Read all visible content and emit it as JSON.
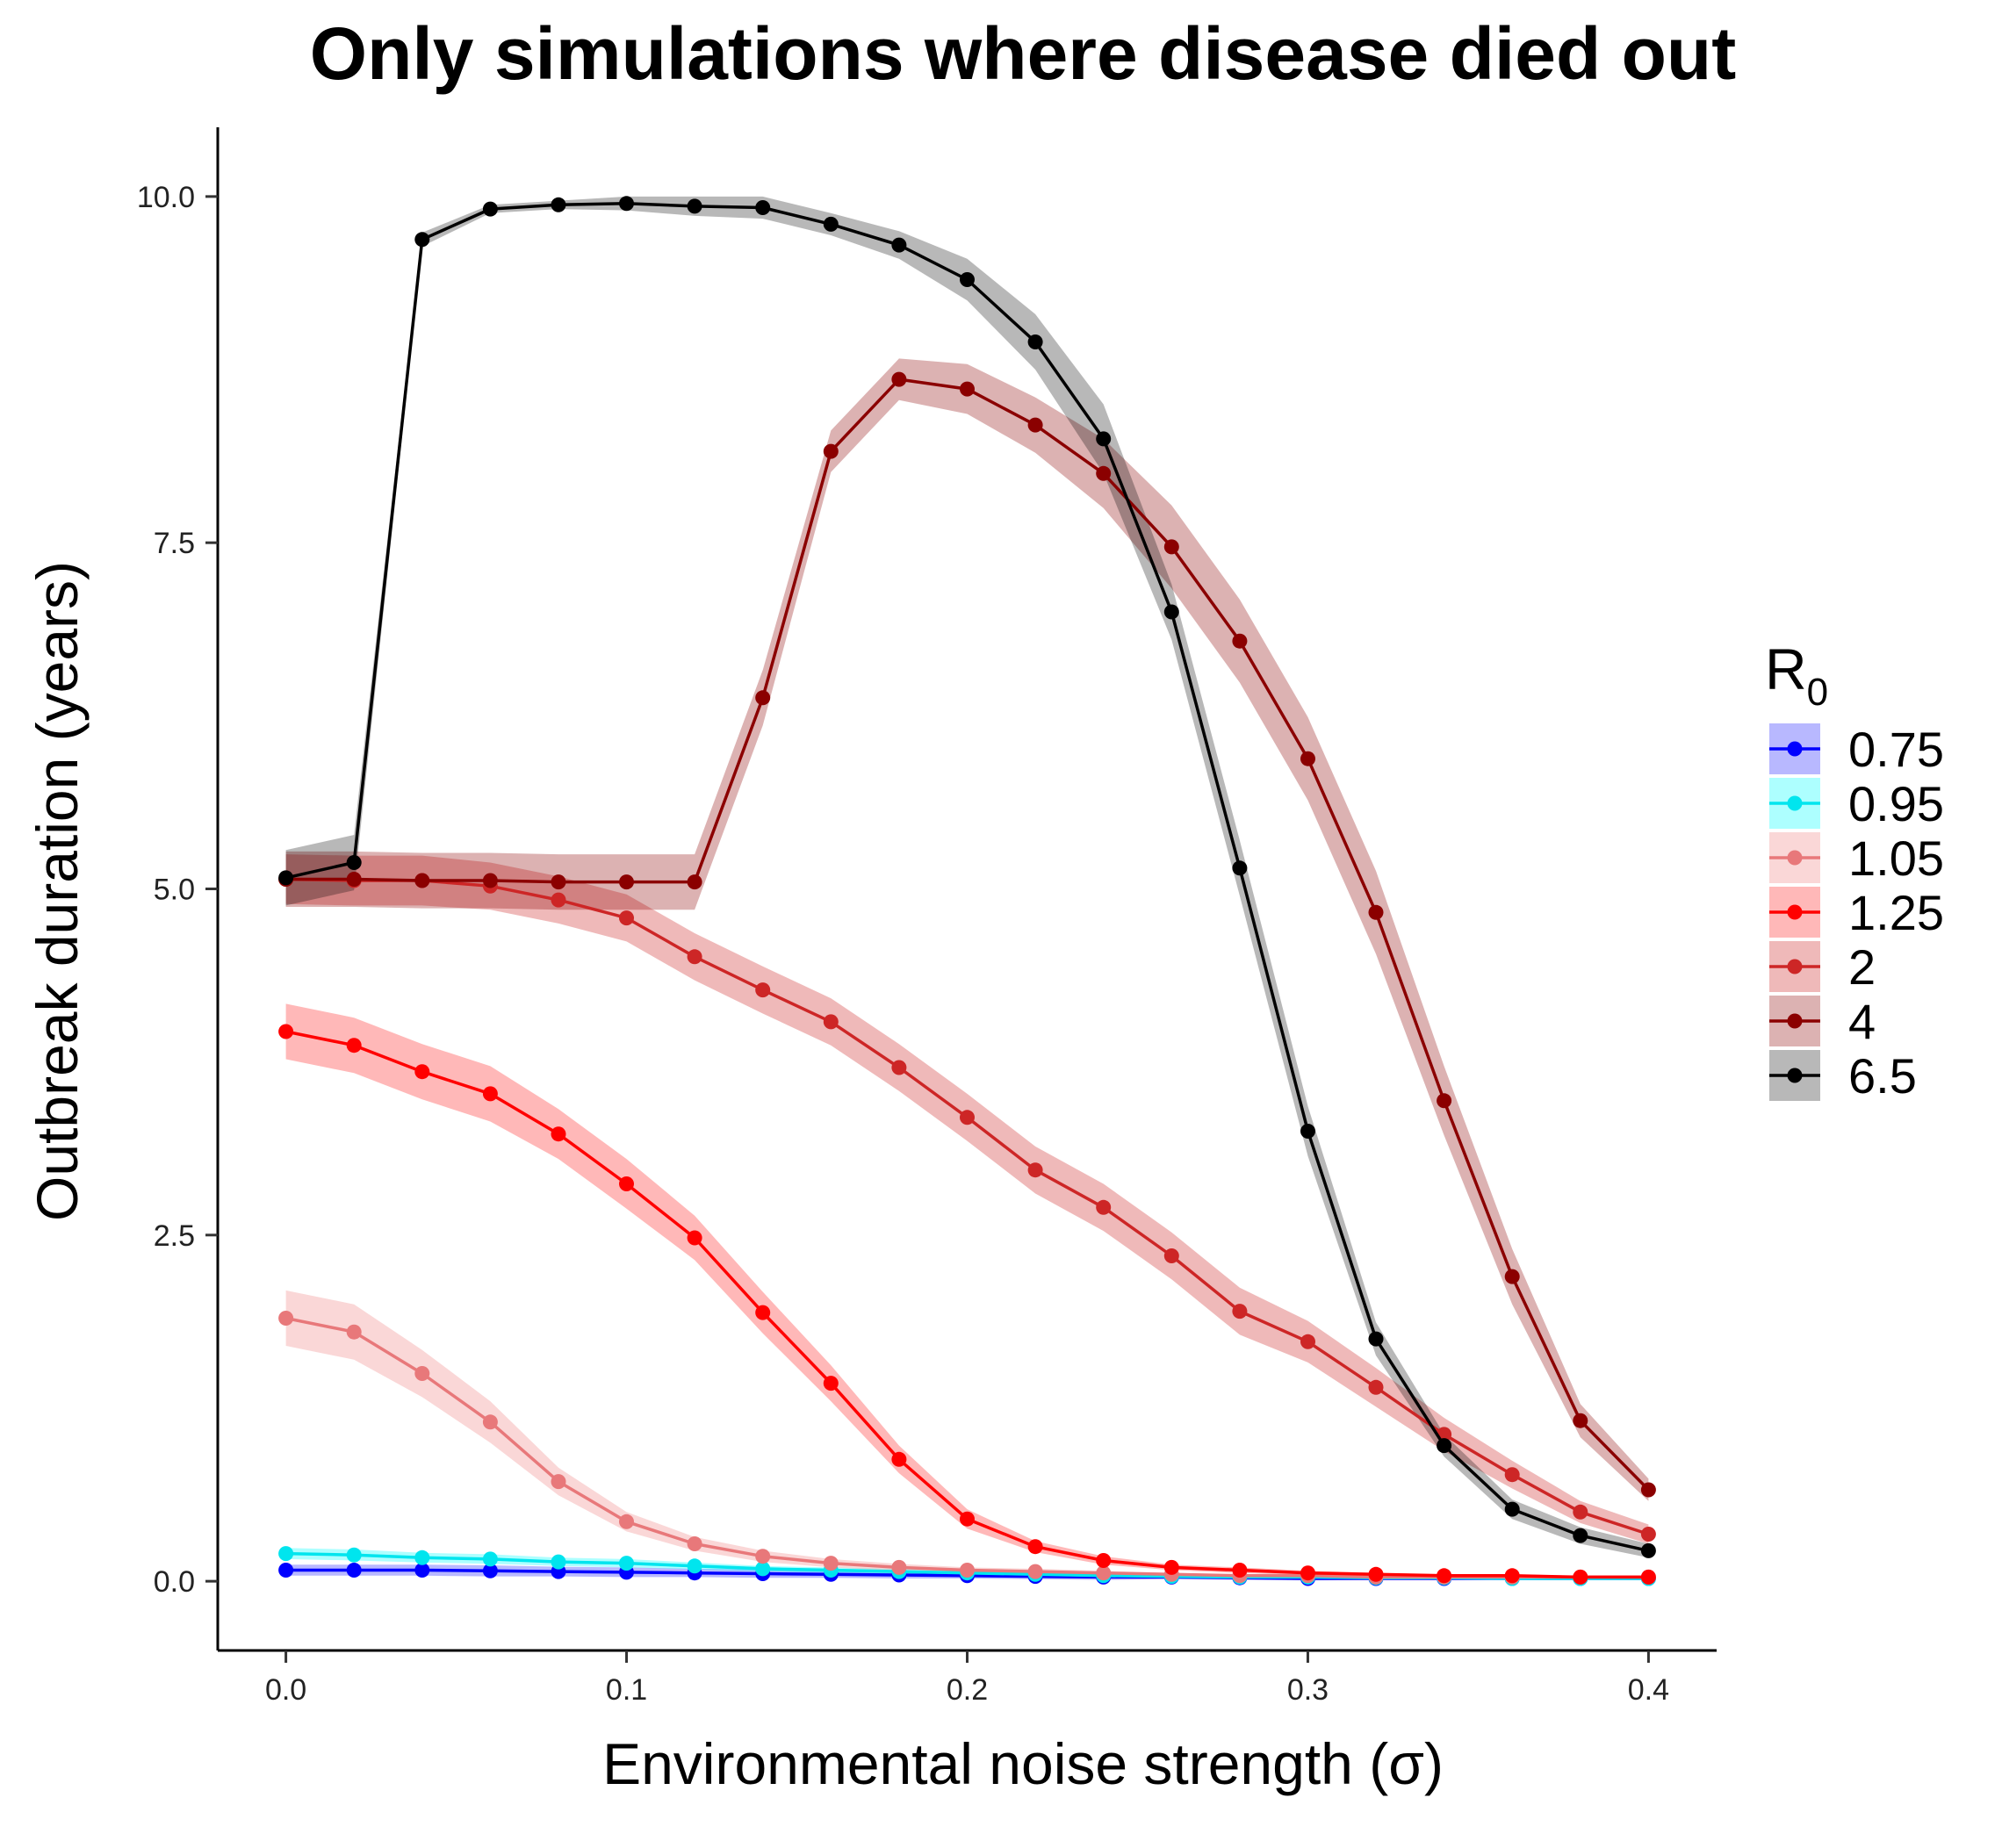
{
  "chart_data": {
    "type": "line",
    "title": "Only simulations where disease died out",
    "xlabel": "Environmental noise strength (σ)",
    "ylabel": "Outbreak duration (years)",
    "xlim": [
      -0.02,
      0.42
    ],
    "ylim": [
      -0.5,
      10.5
    ],
    "x_ticks": [
      "0.0",
      "0.1",
      "0.2",
      "0.3",
      "0.4"
    ],
    "y_ticks": [
      "0.0",
      "2.5",
      "5.0",
      "7.5",
      "10.0"
    ],
    "x_tick_values": [
      0.0,
      0.1,
      0.2,
      0.3,
      0.4
    ],
    "y_tick_values": [
      0.0,
      2.5,
      5.0,
      7.5,
      10.0
    ],
    "grid": false,
    "legend": {
      "title": "R",
      "title_subscript": "0",
      "position": "right"
    },
    "x": [
      0.0,
      0.02,
      0.04,
      0.06,
      0.08,
      0.1,
      0.12,
      0.14,
      0.16,
      0.18,
      0.2,
      0.22,
      0.24,
      0.26,
      0.28,
      0.3,
      0.32,
      0.34,
      0.36,
      0.38,
      0.4
    ],
    "series": [
      {
        "name": "0.75",
        "line_color": "#0000ff",
        "band_color": "#0000ff",
        "band_opacity": 0.28,
        "values": [
          0.08,
          0.08,
          0.08,
          0.075,
          0.07,
          0.065,
          0.06,
          0.055,
          0.05,
          0.045,
          0.04,
          0.035,
          0.03,
          0.03,
          0.025,
          0.02,
          0.02,
          0.02,
          0.02,
          0.02,
          0.02
        ],
        "band": [
          0.04,
          0.04,
          0.04,
          0.04,
          0.035,
          0.035,
          0.03,
          0.03,
          0.025,
          0.025,
          0.02,
          0.02,
          0.02,
          0.015,
          0.015,
          0.015,
          0.01,
          0.01,
          0.01,
          0.01,
          0.01
        ]
      },
      {
        "name": "0.95",
        "line_color": "#00e5ee",
        "band_color": "#00ffff",
        "band_opacity": 0.32,
        "values": [
          0.2,
          0.19,
          0.17,
          0.16,
          0.14,
          0.13,
          0.11,
          0.09,
          0.08,
          0.07,
          0.06,
          0.05,
          0.04,
          0.035,
          0.03,
          0.03,
          0.025,
          0.025,
          0.02,
          0.02,
          0.02
        ],
        "band": [
          0.04,
          0.04,
          0.035,
          0.035,
          0.03,
          0.03,
          0.025,
          0.02,
          0.02,
          0.02,
          0.015,
          0.015,
          0.01,
          0.01,
          0.01,
          0.01,
          0.01,
          0.01,
          0.01,
          0.01,
          0.01
        ]
      },
      {
        "name": "1.05",
        "line_color": "#e8787a",
        "band_color": "#f4a6a6",
        "band_opacity": 0.45,
        "values": [
          1.9,
          1.8,
          1.5,
          1.15,
          0.72,
          0.43,
          0.27,
          0.18,
          0.13,
          0.1,
          0.08,
          0.07,
          0.06,
          0.05,
          0.04,
          0.04,
          0.03,
          0.03,
          0.03,
          0.03,
          0.03
        ],
        "band": [
          0.2,
          0.2,
          0.17,
          0.15,
          0.1,
          0.07,
          0.05,
          0.04,
          0.03,
          0.025,
          0.02,
          0.02,
          0.015,
          0.01,
          0.01,
          0.01,
          0.01,
          0.01,
          0.01,
          0.01,
          0.01
        ]
      },
      {
        "name": "1.25",
        "line_color": "#ff0000",
        "band_color": "#ff0000",
        "band_opacity": 0.28,
        "values": [
          3.97,
          3.87,
          3.68,
          3.52,
          3.23,
          2.87,
          2.48,
          1.94,
          1.43,
          0.88,
          0.45,
          0.25,
          0.15,
          0.1,
          0.08,
          0.06,
          0.05,
          0.04,
          0.04,
          0.03,
          0.03
        ],
        "band": [
          0.2,
          0.2,
          0.2,
          0.2,
          0.18,
          0.18,
          0.16,
          0.15,
          0.13,
          0.1,
          0.07,
          0.04,
          0.03,
          0.02,
          0.02,
          0.015,
          0.01,
          0.01,
          0.01,
          0.01,
          0.01
        ]
      },
      {
        "name": "2",
        "line_color": "#cd2626",
        "band_color": "#cd2626",
        "band_opacity": 0.32,
        "values": [
          5.07,
          5.06,
          5.06,
          5.02,
          4.92,
          4.79,
          4.51,
          4.27,
          4.04,
          3.71,
          3.35,
          2.97,
          2.7,
          2.35,
          1.95,
          1.73,
          1.4,
          1.06,
          0.77,
          0.5,
          0.34
        ],
        "band": [
          0.18,
          0.18,
          0.18,
          0.17,
          0.17,
          0.17,
          0.17,
          0.17,
          0.17,
          0.17,
          0.17,
          0.17,
          0.17,
          0.17,
          0.17,
          0.15,
          0.14,
          0.12,
          0.1,
          0.08,
          0.07
        ]
      },
      {
        "name": "4",
        "line_color": "#8b0000",
        "band_color": "#8b0000",
        "band_opacity": 0.3,
        "values": [
          5.07,
          5.07,
          5.06,
          5.06,
          5.05,
          5.05,
          5.05,
          6.38,
          8.16,
          8.68,
          8.61,
          8.35,
          8.0,
          7.47,
          6.79,
          5.94,
          4.83,
          3.47,
          2.2,
          1.16,
          0.66
        ],
        "band": [
          0.2,
          0.2,
          0.2,
          0.2,
          0.2,
          0.2,
          0.2,
          0.2,
          0.15,
          0.15,
          0.18,
          0.2,
          0.25,
          0.3,
          0.3,
          0.3,
          0.3,
          0.25,
          0.2,
          0.12,
          0.08
        ]
      },
      {
        "name": "6.5",
        "line_color": "#000000",
        "band_color": "#000000",
        "band_opacity": 0.28,
        "values": [
          5.08,
          5.19,
          9.69,
          9.91,
          9.94,
          9.95,
          9.93,
          9.92,
          9.8,
          9.65,
          9.4,
          8.95,
          8.25,
          7.0,
          5.15,
          3.25,
          1.75,
          0.98,
          0.52,
          0.33,
          0.22
        ],
        "band": [
          0.2,
          0.2,
          0.05,
          0.03,
          0.03,
          0.05,
          0.07,
          0.08,
          0.08,
          0.1,
          0.15,
          0.2,
          0.25,
          0.2,
          0.2,
          0.18,
          0.12,
          0.08,
          0.07,
          0.06,
          0.05
        ]
      }
    ]
  }
}
